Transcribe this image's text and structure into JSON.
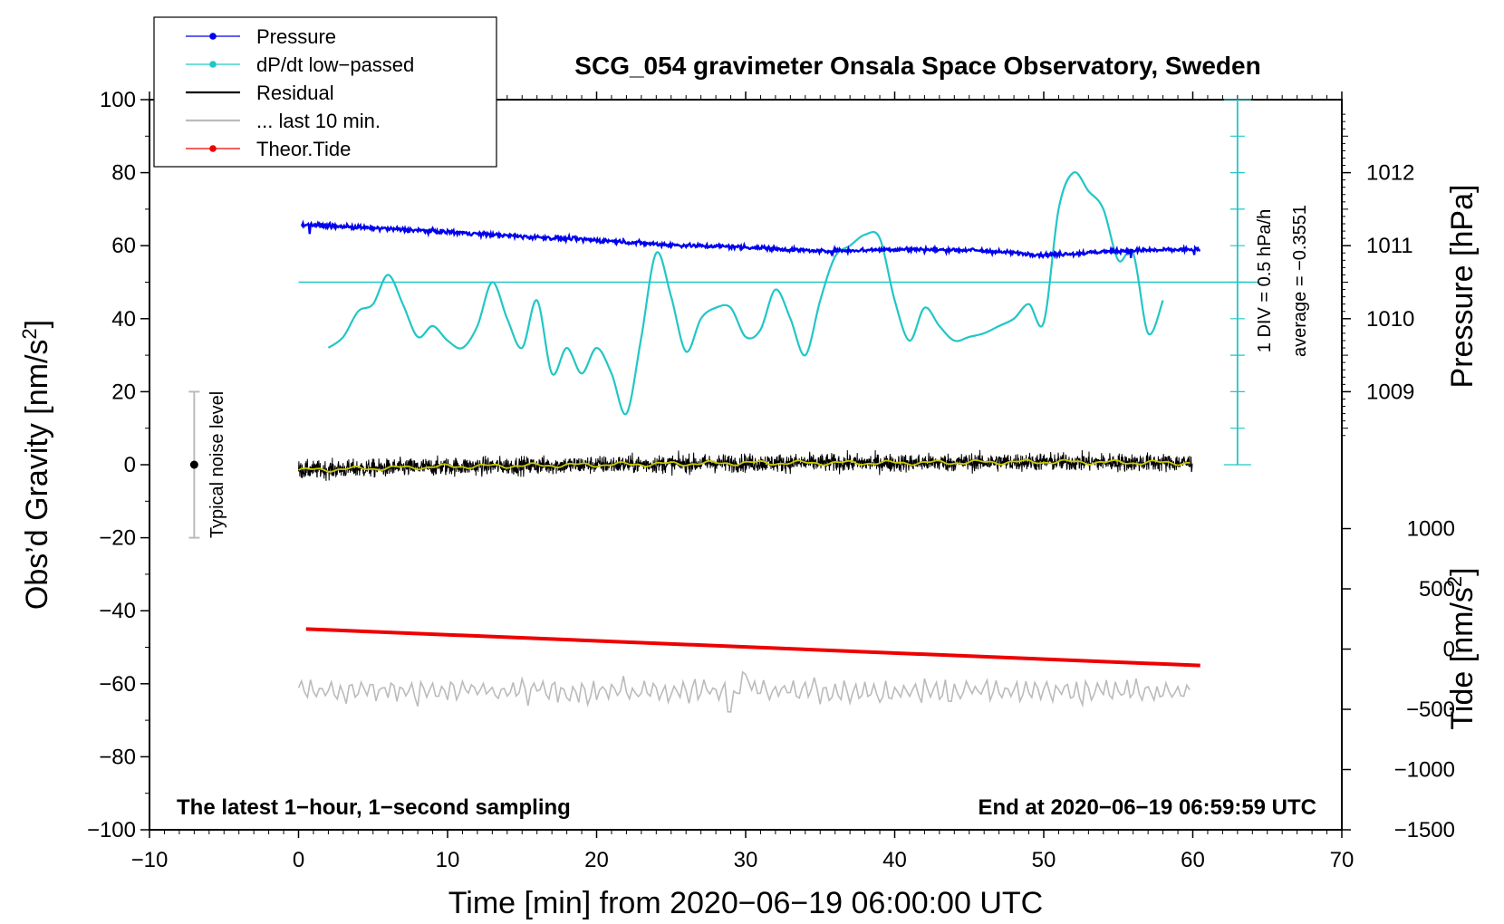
{
  "chart_data": {
    "type": "line",
    "title": "SCG_054 gravimeter Onsala Space Observatory, Sweden",
    "xlabel": "Time [min] from 2020−06−19 06:00:00 UTC",
    "ylabel_prefix": "Obs’d Gravity [nm/s",
    "ylabel_sup": "2",
    "ylabel_suffix": "]",
    "y2label": "Pressure [hPa]",
    "y3label_prefix": "Tide [nm/s",
    "y3label_sup": "2",
    "y3label_suffix": "]",
    "xlim": [
      -10,
      70
    ],
    "ylim": [
      -100,
      100
    ],
    "x_ticks": [
      "−10",
      "0",
      "10",
      "20",
      "30",
      "40",
      "50",
      "60",
      "70"
    ],
    "y_ticks": [
      "−100",
      "−80",
      "−60",
      "−40",
      "−20",
      "0",
      "20",
      "40",
      "60",
      "80",
      "100"
    ],
    "pressure_axis": {
      "ticks": [
        "1009",
        "1010",
        "1011",
        "1012"
      ],
      "ref": [
        1009,
        20,
        1012,
        80
      ]
    },
    "tide_axis": {
      "ticks": [
        "1000",
        "500",
        "0",
        "−500",
        "−1000",
        "−1500"
      ],
      "ref": [
        -1500,
        -100,
        1000,
        -17.5
      ]
    },
    "dpdt_scale": {
      "div_label": "1 DIV = 0.5 hPa/h",
      "average_label": "average = −0.3551",
      "top": 100,
      "bottom": 0,
      "divisions": 10,
      "baseline": 50
    },
    "bottom_left_note": "The latest 1−hour, 1−second sampling",
    "bottom_right_note": "End at 2020−06−19 06:59:59 UTC",
    "noise": {
      "label": "Typical noise level",
      "x": -7,
      "center": 0,
      "half_range": 20
    },
    "legend": [
      {
        "name": "Pressure",
        "color": "#0000ee",
        "marker": true
      },
      {
        "name": "dP/dt low−passed",
        "color": "#22c6c6",
        "marker": true
      },
      {
        "name": "Residual",
        "color": "#000000",
        "marker": false
      },
      {
        "name": "... last 10 min.",
        "color": "#bbbbbb",
        "marker": false
      },
      {
        "name": "Theor.Tide",
        "color": "#ee0000",
        "marker": true
      }
    ],
    "series": {
      "pressure": {
        "x": [
          0.2,
          5,
          10,
          15,
          20,
          25,
          30,
          35,
          40,
          45,
          50,
          52,
          55,
          60.5
        ],
        "y": [
          65.8,
          64.8,
          63.8,
          62.5,
          61.5,
          60.2,
          59.6,
          58.5,
          59.0,
          58.8,
          57.5,
          57.8,
          58.6,
          59.0
        ]
      },
      "dpdt": {
        "x": [
          2,
          3,
          4,
          5,
          6,
          7,
          8,
          9,
          10,
          11,
          12,
          13,
          14,
          15,
          16,
          17,
          18,
          19,
          20,
          21,
          22,
          23,
          24,
          25,
          26,
          27,
          28,
          29,
          30,
          31,
          32,
          33,
          34,
          35,
          36,
          37,
          38,
          39,
          40,
          41,
          42,
          43,
          44,
          45,
          46,
          47,
          48,
          49,
          50,
          51,
          52,
          53,
          54,
          55,
          56,
          57,
          58
        ],
        "y": [
          32,
          35,
          42,
          44,
          52,
          44,
          35,
          38,
          34,
          32,
          38,
          50,
          40,
          32,
          45,
          25,
          32,
          25,
          32,
          25,
          14,
          35,
          58,
          46,
          31,
          40,
          43,
          43,
          35,
          37,
          48,
          40,
          30,
          45,
          57,
          60,
          63,
          62,
          45,
          34,
          43,
          38,
          34,
          35,
          36,
          38,
          40,
          44,
          39,
          70,
          80,
          75,
          70,
          56,
          58,
          36,
          45
        ]
      },
      "residual": {
        "x": [
          0,
          10,
          20,
          30,
          40,
          50,
          60
        ],
        "y": [
          -1.5,
          -0.5,
          0,
          0.5,
          0.5,
          0.8,
          0.5
        ]
      },
      "last10": {
        "x": [
          0,
          60
        ],
        "y": [
          -62,
          -62
        ]
      },
      "tide": {
        "x": [
          0.5,
          60.5
        ],
        "y": [
          -45,
          -55
        ]
      }
    }
  }
}
